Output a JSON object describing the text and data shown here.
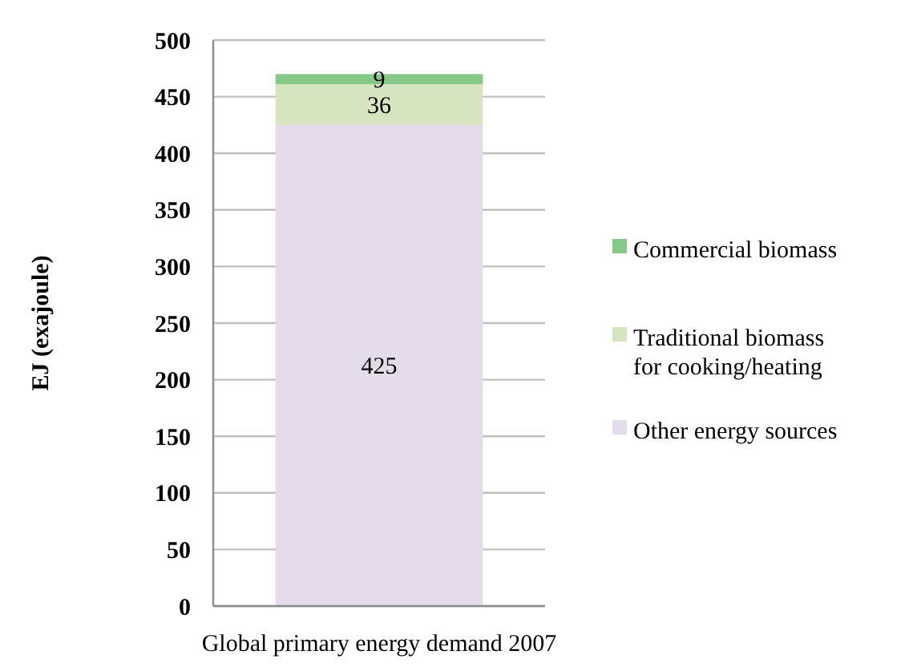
{
  "chart_data": {
    "type": "bar",
    "stacked": true,
    "categories": [
      "Global primary energy demand 2007"
    ],
    "ylabel": "EJ (exajoule)",
    "ylim": [
      0,
      500
    ],
    "yticks": [
      0,
      50,
      100,
      150,
      200,
      250,
      300,
      350,
      400,
      450,
      500
    ],
    "grid": "y",
    "legend": "right",
    "data_labels": true,
    "series": [
      {
        "name": "Other energy sources",
        "color": "#e4dcea",
        "values": [
          425
        ]
      },
      {
        "name": "Traditional biomass for cooking/heating",
        "color": "#d6e4bf",
        "values": [
          36
        ]
      },
      {
        "name": "Commercial biomass",
        "color": "#86c888",
        "values": [
          9
        ]
      }
    ]
  }
}
